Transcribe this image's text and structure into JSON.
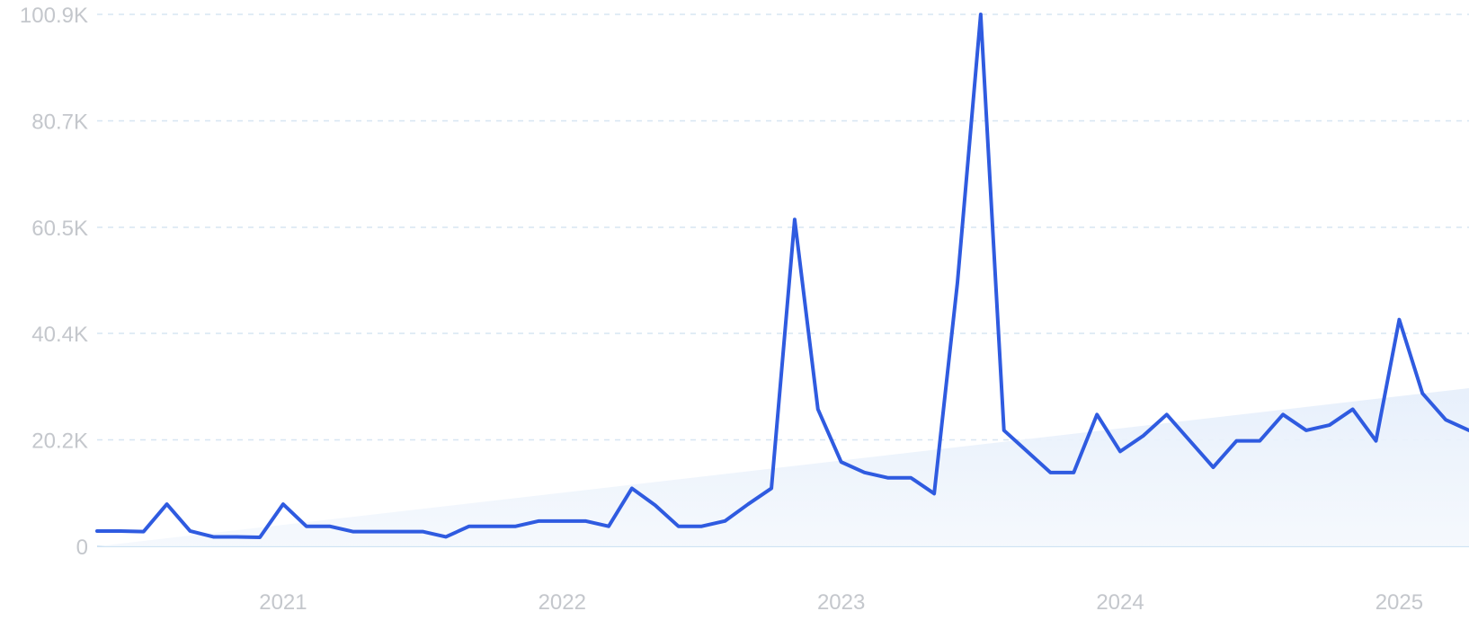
{
  "chart_data": {
    "type": "line",
    "title": "",
    "xlabel": "",
    "ylabel": "",
    "y_ticks": [
      "0",
      "20.2K",
      "40.4K",
      "60.5K",
      "80.7K",
      "100.9K"
    ],
    "y_tick_values": [
      0,
      20200,
      40400,
      60500,
      80700,
      100900
    ],
    "ylim": [
      0,
      100900
    ],
    "x_ticks": [
      "2021",
      "2022",
      "2023",
      "2024",
      "2025"
    ],
    "x_start": "2020-05",
    "x_end": "2025-04",
    "grid": true,
    "legend": "none",
    "colors": {
      "line": "#2f5be0",
      "trend_fill": "#e8f1fb",
      "grid": "#d7e6f2",
      "tick_text": "#c4c7cc"
    },
    "trend": {
      "start": 0,
      "end": 30000
    },
    "series": [
      {
        "x": [
          "2020-05",
          "2020-06",
          "2020-07",
          "2020-08",
          "2020-09",
          "2020-10",
          "2020-11",
          "2020-12",
          "2021-01",
          "2021-02",
          "2021-03",
          "2021-04",
          "2021-05",
          "2021-06",
          "2021-07",
          "2021-08",
          "2021-09",
          "2021-10",
          "2021-11",
          "2021-12",
          "2022-01",
          "2022-02",
          "2022-03",
          "2022-04",
          "2022-05",
          "2022-06",
          "2022-07",
          "2022-08",
          "2022-09",
          "2022-10",
          "2022-11",
          "2022-12",
          "2023-01",
          "2023-02",
          "2023-03",
          "2023-04",
          "2023-05",
          "2023-06",
          "2023-07",
          "2023-08",
          "2023-09",
          "2023-10",
          "2023-11",
          "2023-12",
          "2024-01",
          "2024-02",
          "2024-03",
          "2024-04",
          "2024-05",
          "2024-06",
          "2024-07",
          "2024-08",
          "2024-09",
          "2024-10",
          "2024-11",
          "2024-12",
          "2025-01",
          "2025-02",
          "2025-03",
          "2025-04"
        ],
        "values": [
          2900,
          2900,
          2800,
          8000,
          2900,
          1800,
          1800,
          1700,
          8000,
          3800,
          3800,
          2800,
          2800,
          2800,
          2800,
          1800,
          3800,
          3800,
          3800,
          4800,
          4800,
          4800,
          3800,
          11000,
          7800,
          3800,
          3800,
          4800,
          8000,
          11000,
          62000,
          26000,
          16000,
          14000,
          13000,
          13000,
          10000,
          50000,
          100900,
          22000,
          18000,
          14000,
          14000,
          25000,
          18000,
          21000,
          25000,
          20000,
          15000,
          20000,
          20000,
          25000,
          22000,
          23000,
          26000,
          20000,
          43000,
          29000,
          24000,
          22000
        ]
      }
    ]
  }
}
